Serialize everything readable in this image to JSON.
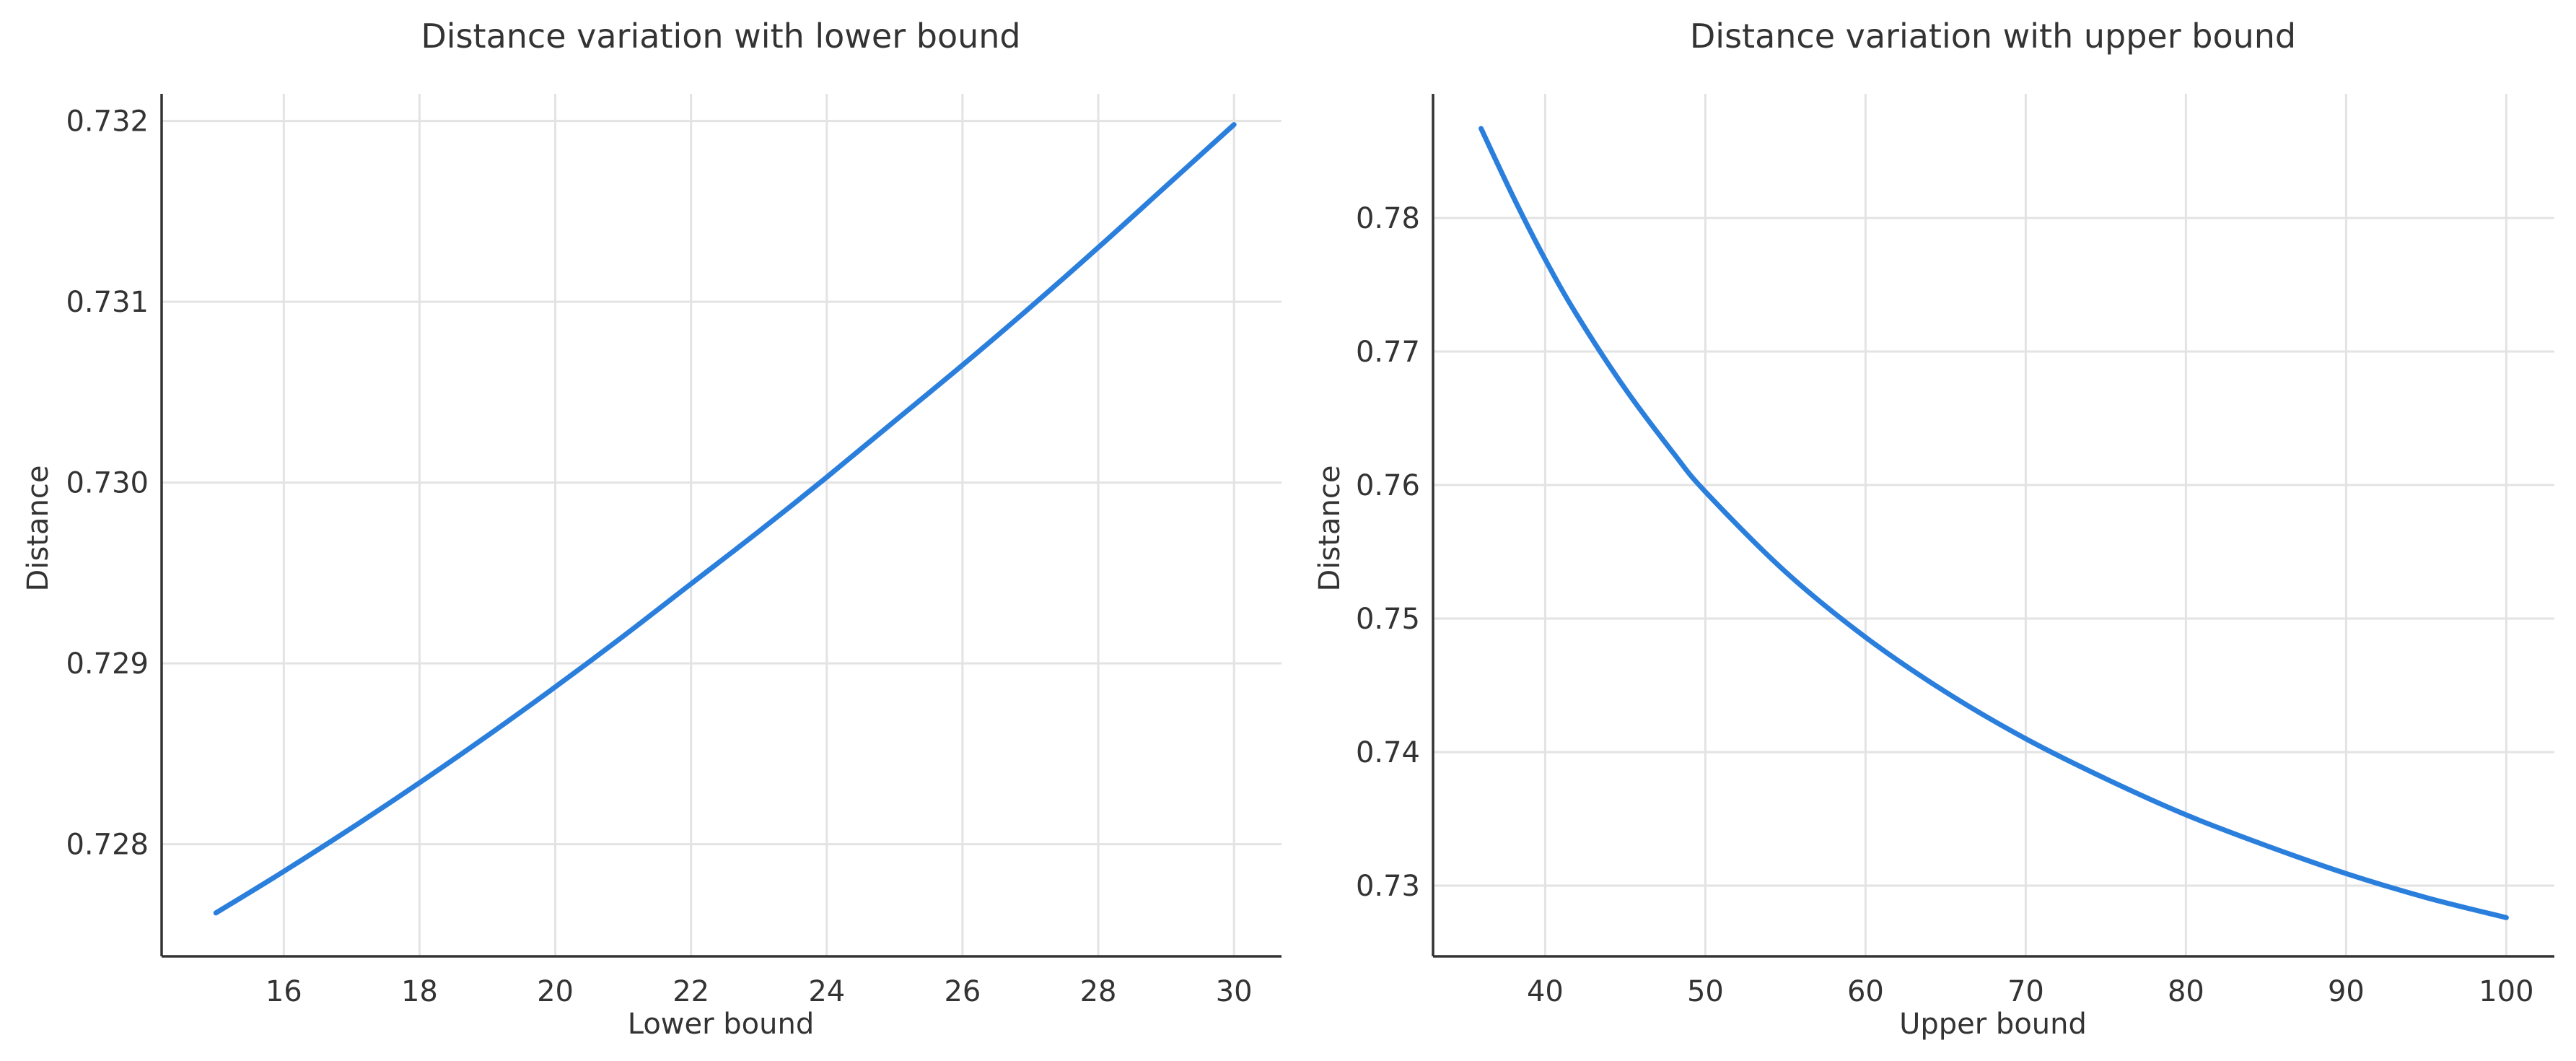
{
  "chart_data": [
    {
      "type": "line",
      "title": "Distance variation with lower bound",
      "xlabel": "Lower bound",
      "ylabel": "Distance",
      "xlim": [
        14.2,
        30.7
      ],
      "ylim": [
        0.72738,
        0.73215
      ],
      "xticks": [
        16,
        18,
        20,
        22,
        24,
        26,
        28,
        30
      ],
      "yticks": [
        0.728,
        0.729,
        0.73,
        0.731,
        0.732
      ],
      "grid": true,
      "series": [
        {
          "color": "#2b7fdc",
          "x": [
            15,
            16,
            17,
            18,
            19,
            20,
            21,
            22,
            23,
            24,
            25,
            26,
            27,
            28,
            29,
            30
          ],
          "y": [
            0.72762,
            0.72785,
            0.72809,
            0.72834,
            0.7286,
            0.72887,
            0.72915,
            0.72944,
            0.72973,
            0.73003,
            0.73034,
            0.73065,
            0.73097,
            0.7313,
            0.73164,
            0.73198
          ]
        }
      ]
    },
    {
      "type": "line",
      "title": "Distance variation with upper bound",
      "xlabel": "Upper bound",
      "ylabel": "Distance",
      "xlim": [
        33,
        103
      ],
      "ylim": [
        0.7247,
        0.7893
      ],
      "xticks": [
        40,
        50,
        60,
        70,
        80,
        90,
        100
      ],
      "yticks": [
        0.73,
        0.74,
        0.75,
        0.76,
        0.77,
        0.78
      ],
      "grid": true,
      "series": [
        {
          "color": "#2b7fdc",
          "x": [
            36,
            38,
            40,
            42,
            45,
            48,
            50,
            55,
            60,
            65,
            70,
            75,
            80,
            85,
            90,
            95,
            100
          ],
          "y": [
            0.7867,
            0.7816,
            0.7769,
            0.7727,
            0.7672,
            0.7624,
            0.7595,
            0.7535,
            0.7486,
            0.7445,
            0.741,
            0.738,
            0.7353,
            0.733,
            0.7309,
            0.7291,
            0.7276
          ]
        }
      ]
    }
  ]
}
